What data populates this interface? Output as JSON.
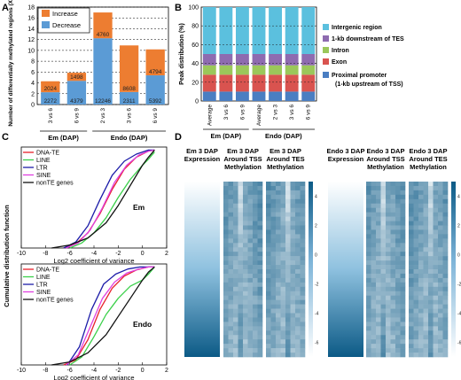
{
  "colors": {
    "increase": "#ED7D31",
    "decrease": "#5B9BD5",
    "intergenic": "#5BC0DE",
    "tes": "#8E6BB0",
    "intron": "#9BC75A",
    "exon": "#D9534F",
    "promoter": "#4A7EC2",
    "dna_te": "#E8202A",
    "line": "#3BD04A",
    "ltr": "#1C1CA8",
    "sine": "#E040E0",
    "nonte": "#111111",
    "heat_low": "#FFFFFF",
    "heat_high": "#0C5A86"
  },
  "panels": {
    "a": "A",
    "b": "B",
    "c": "C",
    "d": "D"
  },
  "chart_data": [
    {
      "id": "A",
      "type": "bar",
      "stacked": true,
      "ylabel": "Number of differentially methylated regions (X1000)",
      "ylim": [
        0,
        18
      ],
      "yticks": [
        0,
        2,
        4,
        6,
        8,
        10,
        12,
        14,
        16,
        18
      ],
      "categories": [
        "3 vs 6",
        "6 vs 9",
        "2 vs 3",
        "3 vs 6",
        "6 vs 9"
      ],
      "groups": [
        {
          "label": "Em (DAP)",
          "categories": [
            "3 vs 6",
            "6 vs 9"
          ]
        },
        {
          "label": "Endo (DAP)",
          "categories": [
            "2 vs 3",
            "3 vs 6",
            "6 vs 9"
          ]
        }
      ],
      "series": [
        {
          "name": "Decrease",
          "values": [
            2.272,
            4.379,
            12.246,
            2.311,
            5.392
          ],
          "labels": [
            "2272",
            "4379",
            "12246",
            "2311",
            "5392"
          ]
        },
        {
          "name": "Increase",
          "values": [
            2.024,
            1.498,
            4.76,
            8.608,
            4.794
          ],
          "labels": [
            "2024",
            "1498",
            "4760",
            "8608",
            "4794"
          ]
        }
      ],
      "legend": "top-left"
    },
    {
      "id": "B",
      "type": "bar",
      "stacked": true,
      "ylabel": "Peak distribution (%)",
      "ylim": [
        0,
        100
      ],
      "yticks": [
        0,
        20,
        40,
        60,
        80,
        100
      ],
      "categories": [
        "Average",
        "3 vs 6",
        "6 vs 9",
        "Average",
        "2 vs 3",
        "3 vs 6",
        "6 vs 9"
      ],
      "groups": [
        {
          "label": "Em (DAP)",
          "categories": [
            "Average",
            "3 vs 6",
            "6 vs 9"
          ]
        },
        {
          "label": "Endo (DAP)",
          "categories": [
            "Average",
            "2 vs 3",
            "3 vs 6",
            "6 vs 9"
          ]
        }
      ],
      "series": [
        {
          "name": "Proximal promoter (1-kb upstream of TSS)",
          "values": [
            10,
            10,
            10,
            10,
            10,
            10,
            10
          ]
        },
        {
          "name": "Exon",
          "values": [
            18,
            18,
            18,
            18,
            18,
            18,
            18
          ]
        },
        {
          "name": "Intron",
          "values": [
            10,
            10,
            10,
            10,
            10,
            10,
            10
          ]
        },
        {
          "name": "1-kb downstream of TES",
          "values": [
            12,
            12,
            12,
            12,
            12,
            12,
            12
          ]
        },
        {
          "name": "Intergenic region",
          "values": [
            50,
            50,
            50,
            50,
            50,
            50,
            50
          ]
        }
      ],
      "legend": "right"
    },
    {
      "id": "C-Em",
      "type": "line",
      "ylabel": "Cumulative distribution function",
      "xlabel": "Log2 coefficient of variance",
      "xlim": [
        -10,
        2
      ],
      "xticks": [
        -10,
        -8,
        -6,
        -4,
        -2,
        0,
        2
      ],
      "ylim": [
        0,
        1
      ],
      "annotation": "Em",
      "series": [
        {
          "name": "DNA-TE",
          "x": [
            -6.5,
            -5.5,
            -4.5,
            -3.5,
            -2.5,
            -1.5,
            -0.5,
            0.5,
            1
          ],
          "y": [
            0,
            0.04,
            0.15,
            0.34,
            0.58,
            0.78,
            0.9,
            0.96,
            0.97
          ]
        },
        {
          "name": "LINE",
          "x": [
            -6,
            -5,
            -4,
            -3,
            -2,
            -1,
            0,
            0.5,
            1
          ],
          "y": [
            0,
            0.05,
            0.15,
            0.3,
            0.5,
            0.68,
            0.82,
            0.88,
            0.95
          ]
        },
        {
          "name": "LTR",
          "x": [
            -6.5,
            -5.5,
            -4.5,
            -3.5,
            -2.5,
            -1.5,
            -0.5,
            0.5,
            1
          ],
          "y": [
            0,
            0.06,
            0.22,
            0.48,
            0.72,
            0.86,
            0.93,
            0.97,
            0.97
          ]
        },
        {
          "name": "SINE",
          "x": [
            -6.3,
            -5.3,
            -4.3,
            -3.3,
            -2.3,
            -1.3,
            -0.3,
            0.5,
            1
          ],
          "y": [
            0,
            0.05,
            0.18,
            0.4,
            0.65,
            0.82,
            0.92,
            0.96,
            0.97
          ]
        },
        {
          "name": "nonTE genes",
          "x": [
            -7.5,
            -6,
            -4.5,
            -3,
            -2,
            -1,
            0,
            0.5,
            1
          ],
          "y": [
            0,
            0.03,
            0.1,
            0.25,
            0.42,
            0.62,
            0.82,
            0.9,
            0.97
          ]
        }
      ],
      "legend": "top-left"
    },
    {
      "id": "C-Endo",
      "type": "line",
      "ylabel": "Cumulative distribution function",
      "xlabel": "Log2 coefficient of variance",
      "xlim": [
        -10,
        2
      ],
      "xticks": [
        -10,
        -8,
        -6,
        -4,
        -2,
        0,
        2
      ],
      "ylim": [
        0,
        1
      ],
      "annotation": "Endo",
      "series": [
        {
          "name": "DNA-TE",
          "x": [
            -6.5,
            -5.5,
            -4.5,
            -3.5,
            -2.5,
            -1.5,
            -0.5,
            0.5,
            1
          ],
          "y": [
            0,
            0.05,
            0.25,
            0.55,
            0.76,
            0.88,
            0.94,
            0.97,
            0.97
          ]
        },
        {
          "name": "LINE",
          "x": [
            -6,
            -5,
            -4,
            -3,
            -2,
            -1,
            0,
            0.5,
            1
          ],
          "y": [
            0,
            0.08,
            0.28,
            0.5,
            0.66,
            0.78,
            0.84,
            0.9,
            0.97
          ]
        },
        {
          "name": "LTR",
          "x": [
            -6.2,
            -5.2,
            -4.2,
            -3.2,
            -2.2,
            -1.2,
            -0.2,
            0.5,
            1
          ],
          "y": [
            0,
            0.18,
            0.55,
            0.8,
            0.9,
            0.95,
            0.97,
            0.97,
            0.97
          ]
        },
        {
          "name": "SINE",
          "x": [
            -6.3,
            -5.3,
            -4.3,
            -3.3,
            -2.3,
            -1.3,
            -0.3,
            0.5,
            1
          ],
          "y": [
            0,
            0.1,
            0.38,
            0.66,
            0.82,
            0.91,
            0.95,
            0.97,
            0.97
          ]
        },
        {
          "name": "nonTE genes",
          "x": [
            -7.5,
            -6,
            -4.5,
            -3,
            -2,
            -1,
            0,
            0.5,
            1
          ],
          "y": [
            0,
            0.03,
            0.12,
            0.3,
            0.48,
            0.66,
            0.84,
            0.92,
            0.97
          ]
        }
      ],
      "legend": "top-left"
    },
    {
      "id": "D",
      "type": "heatmap",
      "panels": [
        {
          "title": "Em 3 DAP Expression",
          "kind": "expression"
        },
        {
          "title": "Em 3 DAP Around TSS Methylation",
          "kind": "tss"
        },
        {
          "title": "Em 3 DAP Around TES Methylation",
          "kind": "tes"
        },
        {
          "title": "Endo 3 DAP Expression",
          "kind": "expression"
        },
        {
          "title": "Endo 3 DAP Around TSS Methylation",
          "kind": "tss"
        },
        {
          "title": "Endo 3 DAP Around TES Methylation",
          "kind": "tes"
        }
      ],
      "colorbar_ticks": [
        4,
        2,
        0,
        -2,
        -4,
        -6
      ],
      "colorbar_range": [
        -7,
        5
      ]
    }
  ]
}
